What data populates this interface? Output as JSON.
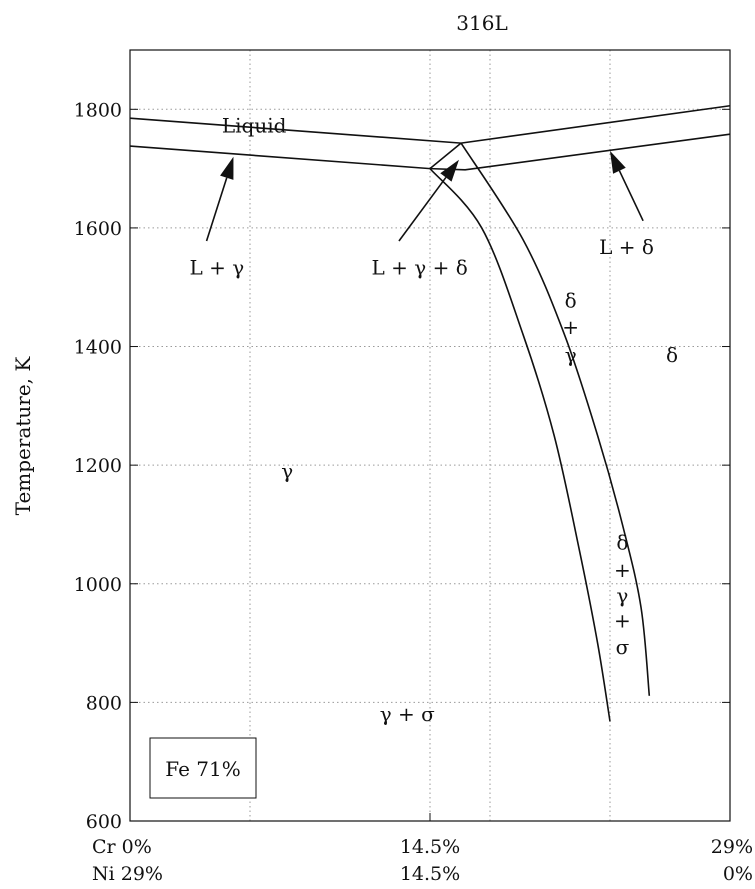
{
  "chart_data": {
    "type": "line",
    "title": "316L",
    "ylabel": "Temperature, K",
    "ylim": [
      600,
      1900
    ],
    "yticks": [
      600,
      800,
      1000,
      1200,
      1400,
      1600,
      1800
    ],
    "x_domain_percent_cr": [
      0,
      29
    ],
    "x_axis": {
      "cr_labels": [
        "Cr 0%",
        "14.5%",
        "29%"
      ],
      "ni_labels": [
        "Ni 29%",
        "14.5%",
        "0%"
      ],
      "ticks_cr": [
        0,
        14.5,
        29
      ]
    },
    "grid": true,
    "x_gridlines_cr": [
      5.8,
      14.5,
      17.4,
      23.2
    ],
    "inset_label": "Fe 71%",
    "series": [
      {
        "points": [
          [
            0,
            1785
          ],
          [
            16.0,
            1743
          ],
          [
            29,
            1806
          ]
        ]
      },
      {
        "points": [
          [
            0,
            1738
          ],
          [
            14.5,
            1700
          ],
          [
            16.0,
            1743
          ]
        ]
      },
      {
        "points": [
          [
            14.5,
            1700
          ],
          [
            16.2,
            1698
          ],
          [
            29,
            1758
          ]
        ]
      },
      {
        "points": [
          [
            14.5,
            1700
          ],
          [
            17,
            1600
          ],
          [
            19,
            1420
          ],
          [
            20.5,
            1250
          ],
          [
            21.7,
            1060
          ],
          [
            22.6,
            900
          ],
          [
            23.2,
            768
          ]
        ]
      },
      {
        "points": [
          [
            16.0,
            1743
          ],
          [
            19,
            1580
          ],
          [
            21,
            1420
          ],
          [
            22.6,
            1250
          ],
          [
            23.8,
            1100
          ],
          [
            24.7,
            960
          ],
          [
            25.1,
            811
          ]
        ]
      }
    ],
    "annotations": [
      {
        "text": "Liquid",
        "x": 6.0,
        "y": 1773
      },
      {
        "text": "L + γ",
        "x": 4.2,
        "y": 1533
      },
      {
        "text": "L + γ + δ",
        "x": 14.0,
        "y": 1533
      },
      {
        "text": "L + δ",
        "x": 24.0,
        "y": 1568
      },
      {
        "text": "δ",
        "x": 21.3,
        "y": 1478
      },
      {
        "text": "+",
        "x": 21.3,
        "y": 1433
      },
      {
        "text": "γ",
        "x": 21.3,
        "y": 1386
      },
      {
        "text": "δ",
        "x": 26.2,
        "y": 1386
      },
      {
        "text": "γ",
        "x": 7.6,
        "y": 1190
      },
      {
        "text": "δ",
        "x": 23.8,
        "y": 1070
      },
      {
        "text": "+",
        "x": 23.8,
        "y": 1023
      },
      {
        "text": "γ",
        "x": 23.8,
        "y": 980
      },
      {
        "text": "+",
        "x": 23.8,
        "y": 938
      },
      {
        "text": "σ",
        "x": 23.8,
        "y": 893
      },
      {
        "text": "γ + σ",
        "x": 13.4,
        "y": 780
      }
    ],
    "arrows": [
      {
        "from": [
          3.7,
          1578
        ],
        "to": [
          5.0,
          1720
        ]
      },
      {
        "from": [
          13.0,
          1578
        ],
        "to": [
          15.9,
          1715
        ]
      },
      {
        "from": [
          24.8,
          1612
        ],
        "to": [
          23.2,
          1730
        ]
      }
    ]
  }
}
